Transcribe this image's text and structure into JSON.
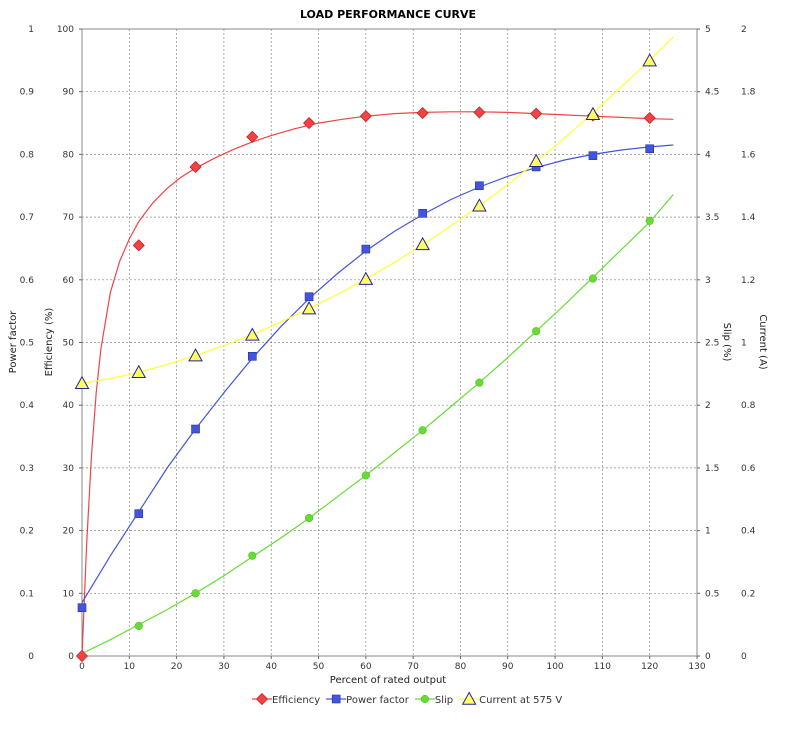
{
  "chart_data": {
    "type": "line",
    "title": "LOAD PERFORMANCE CURVE",
    "xlabel": "Percent of rated output",
    "xlim": [
      0,
      130
    ],
    "xticks": [
      0,
      10,
      20,
      30,
      40,
      50,
      60,
      70,
      80,
      90,
      100,
      110,
      120,
      130
    ],
    "grid": true,
    "legend_position": "bottom",
    "axes": {
      "power_factor": {
        "label": "Power factor",
        "side": "left-outer",
        "range": [
          0,
          1
        ],
        "ticks": [
          "0",
          "0.1",
          "0.2",
          "0.3",
          "0.4",
          "0.5",
          "0.6",
          "0.7",
          "0.8",
          "0.9",
          "1"
        ]
      },
      "efficiency": {
        "label": "Efficiency (%)",
        "side": "left-inner",
        "range": [
          0,
          100
        ],
        "ticks": [
          "0",
          "10",
          "20",
          "30",
          "40",
          "50",
          "60",
          "70",
          "80",
          "90",
          "100"
        ]
      },
      "slip": {
        "label": "Slip (%)",
        "side": "right-inner",
        "range": [
          0,
          5
        ],
        "ticks": [
          "0",
          "0.5",
          "1",
          "1.5",
          "2",
          "2.5",
          "3",
          "3.5",
          "4",
          "4.5",
          "5"
        ]
      },
      "current": {
        "label": "Current (A)",
        "side": "right-outer",
        "range": [
          0,
          2
        ],
        "ticks": [
          "0",
          "0.2",
          "0.4",
          "0.6",
          "0.8",
          "1",
          "1.2",
          "1.4",
          "1.6",
          "1.8",
          "2"
        ]
      }
    },
    "series": [
      {
        "name": "Efficiency",
        "axis": "efficiency",
        "color": "#ee4444",
        "marker": "diamond",
        "x": [
          0,
          12,
          24,
          36,
          48,
          60,
          72,
          84,
          96,
          108,
          120
        ],
        "y": [
          0,
          65.5,
          78,
          82.8,
          85,
          86.1,
          86.6,
          86.7,
          86.5,
          86.2,
          85.8
        ],
        "curve": [
          [
            0,
            0
          ],
          [
            1,
            18
          ],
          [
            2,
            32
          ],
          [
            3,
            42
          ],
          [
            4,
            49
          ],
          [
            6,
            58
          ],
          [
            8,
            63
          ],
          [
            10,
            66.5
          ],
          [
            12,
            69.3
          ],
          [
            15,
            72.3
          ],
          [
            18,
            74.6
          ],
          [
            21,
            76.4
          ],
          [
            24,
            77.8
          ],
          [
            28,
            79.4
          ],
          [
            32,
            80.8
          ],
          [
            36,
            82.0
          ],
          [
            40,
            83.0
          ],
          [
            45,
            84.1
          ],
          [
            50,
            85.0
          ],
          [
            55,
            85.6
          ],
          [
            60,
            86.1
          ],
          [
            66,
            86.5
          ],
          [
            72,
            86.7
          ],
          [
            78,
            86.8
          ],
          [
            84,
            86.8
          ],
          [
            90,
            86.7
          ],
          [
            96,
            86.5
          ],
          [
            102,
            86.3
          ],
          [
            108,
            86.1
          ],
          [
            114,
            85.9
          ],
          [
            120,
            85.7
          ],
          [
            125,
            85.6
          ]
        ]
      },
      {
        "name": "Power factor",
        "axis": "power_factor",
        "color": "#4455dd",
        "marker": "square",
        "x": [
          0,
          12,
          24,
          36,
          48,
          60,
          72,
          84,
          96,
          108,
          120
        ],
        "y": [
          0.077,
          0.227,
          0.362,
          0.478,
          0.573,
          0.649,
          0.706,
          0.75,
          0.78,
          0.798,
          0.809
        ],
        "curve": [
          [
            0,
            0.085
          ],
          [
            6,
            0.16
          ],
          [
            12,
            0.23
          ],
          [
            18,
            0.3
          ],
          [
            24,
            0.362
          ],
          [
            30,
            0.42
          ],
          [
            36,
            0.475
          ],
          [
            42,
            0.525
          ],
          [
            48,
            0.57
          ],
          [
            54,
            0.61
          ],
          [
            60,
            0.646
          ],
          [
            66,
            0.677
          ],
          [
            72,
            0.704
          ],
          [
            78,
            0.728
          ],
          [
            84,
            0.748
          ],
          [
            90,
            0.765
          ],
          [
            96,
            0.779
          ],
          [
            102,
            0.791
          ],
          [
            108,
            0.8
          ],
          [
            114,
            0.807
          ],
          [
            120,
            0.812
          ],
          [
            125,
            0.815
          ]
        ]
      },
      {
        "name": "Slip",
        "axis": "slip",
        "color": "#66dd33",
        "marker": "circle",
        "x": [
          12,
          24,
          36,
          48,
          60,
          72,
          84,
          96,
          108,
          120
        ],
        "y": [
          0.24,
          0.5,
          0.8,
          1.1,
          1.44,
          1.8,
          2.18,
          2.59,
          3.01,
          3.47
        ],
        "curve": [
          [
            0,
            0.02
          ],
          [
            6,
            0.13
          ],
          [
            12,
            0.25
          ],
          [
            18,
            0.37
          ],
          [
            24,
            0.5
          ],
          [
            30,
            0.64
          ],
          [
            36,
            0.79
          ],
          [
            42,
            0.94
          ],
          [
            48,
            1.1
          ],
          [
            54,
            1.27
          ],
          [
            60,
            1.44
          ],
          [
            66,
            1.62
          ],
          [
            72,
            1.8
          ],
          [
            78,
            1.99
          ],
          [
            84,
            2.18
          ],
          [
            90,
            2.38
          ],
          [
            96,
            2.59
          ],
          [
            102,
            2.8
          ],
          [
            108,
            3.02
          ],
          [
            114,
            3.24
          ],
          [
            120,
            3.46
          ],
          [
            125,
            3.68
          ]
        ]
      },
      {
        "name": "Current at 575 V",
        "axis": "current",
        "color": "#ffff33",
        "marker": "triangle",
        "marker_fill": "#ffff66",
        "marker_stroke": "#222299",
        "x": [
          0,
          12,
          24,
          36,
          48,
          60,
          72,
          84,
          96,
          108,
          120
        ],
        "y": [
          0.87,
          0.905,
          0.958,
          1.024,
          1.108,
          1.202,
          1.313,
          1.436,
          1.578,
          1.728,
          1.899
        ],
        "curve": [
          [
            0,
            0.87
          ],
          [
            6,
            0.885
          ],
          [
            12,
            0.905
          ],
          [
            18,
            0.93
          ],
          [
            24,
            0.958
          ],
          [
            30,
            0.99
          ],
          [
            36,
            1.025
          ],
          [
            42,
            1.065
          ],
          [
            48,
            1.108
          ],
          [
            54,
            1.153
          ],
          [
            60,
            1.203
          ],
          [
            66,
            1.255
          ],
          [
            72,
            1.312
          ],
          [
            78,
            1.372
          ],
          [
            84,
            1.436
          ],
          [
            90,
            1.504
          ],
          [
            96,
            1.576
          ],
          [
            102,
            1.652
          ],
          [
            108,
            1.732
          ],
          [
            114,
            1.815
          ],
          [
            120,
            1.9
          ],
          [
            125,
            1.975
          ]
        ]
      }
    ]
  }
}
